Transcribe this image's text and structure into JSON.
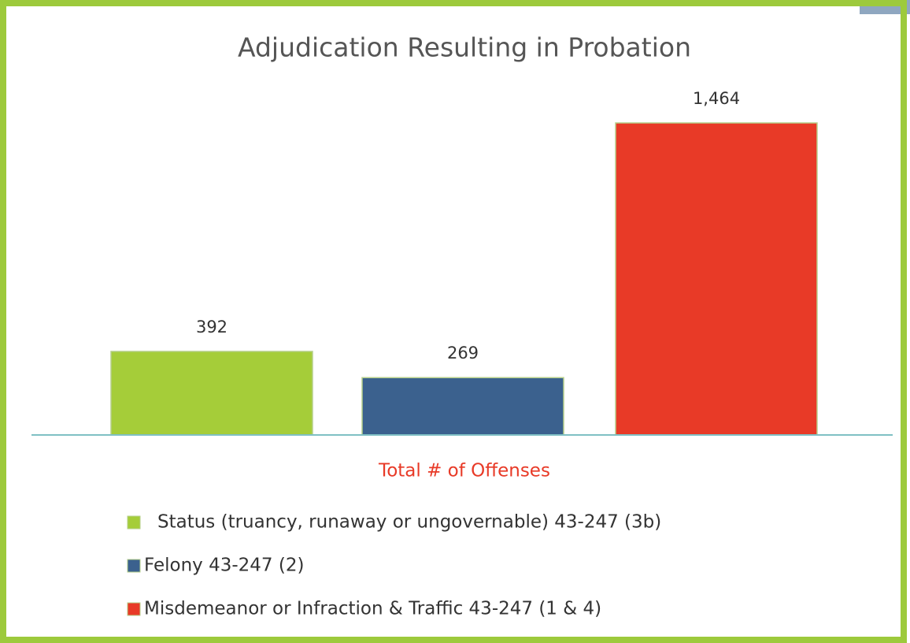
{
  "chart_data": {
    "type": "bar",
    "title": "Adjudication Resulting in Probation",
    "categories": [
      "Total # of Offenses"
    ],
    "series": [
      {
        "name": "Status (truancy, runaway or ungovernable) 43-247 (3b)",
        "color": "#a5cd39",
        "values": [
          392
        ]
      },
      {
        "name": "Felony 43-247 (2)",
        "color": "#3b618e",
        "values": [
          269
        ]
      },
      {
        "name": "Misdemeanor or Infraction & Traffic 43-247 (1 & 4)",
        "color": "#e83a27",
        "values": [
          1464
        ],
        "value_labels": [
          "1,464"
        ]
      }
    ],
    "legend": "bottom"
  }
}
